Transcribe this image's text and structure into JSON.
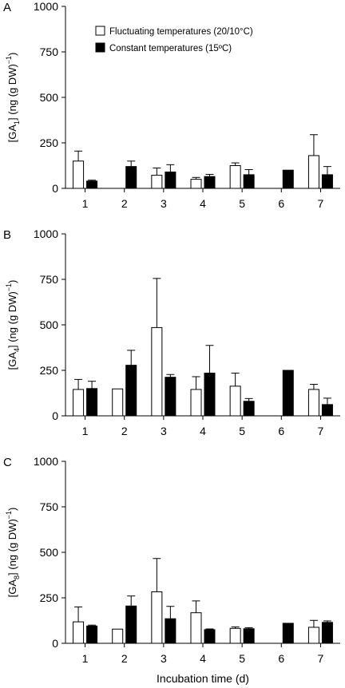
{
  "legend": {
    "items": [
      {
        "label": "Fluctuating temperatures (20/10°C)",
        "color": "#ffffff"
      },
      {
        "label": "Constant temperatures (15ºC)",
        "color": "#000000"
      }
    ],
    "placement": "top-left"
  },
  "shared": {
    "xlabel": "Incubation time (d)",
    "categories": [
      "1",
      "2",
      "3",
      "4",
      "5",
      "6",
      "7"
    ],
    "ylim": [
      0,
      1000
    ],
    "yticks": [
      "0",
      "250",
      "500",
      "750",
      "1000"
    ]
  },
  "chart_data": [
    {
      "type": "bar",
      "panel": "A",
      "ylabel_base": "[GA",
      "ylabel_sub": "1",
      "ylabel_rest": "] (ng (g DW)",
      "ylabel_sup": "−1",
      "ylabel_close": ")",
      "categories": [
        "1",
        "2",
        "3",
        "4",
        "5",
        "6",
        "7"
      ],
      "ylim": [
        0,
        1000
      ],
      "series": [
        {
          "name": "Fluctuating temperatures (20/10°C)",
          "values": [
            150,
            null,
            72,
            50,
            125,
            null,
            180
          ],
          "errors": [
            55,
            null,
            40,
            10,
            15,
            null,
            115
          ]
        },
        {
          "name": "Constant temperatures (15ºC)",
          "values": [
            40,
            120,
            90,
            65,
            75,
            100,
            75
          ],
          "errors": [
            5,
            30,
            40,
            12,
            28,
            null,
            45
          ]
        }
      ]
    },
    {
      "type": "bar",
      "panel": "B",
      "ylabel_base": "[GA",
      "ylabel_sub": "4",
      "ylabel_rest": "] (ng (g DW)",
      "ylabel_sup": "−1",
      "ylabel_close": ")",
      "categories": [
        "1",
        "2",
        "3",
        "4",
        "5",
        "6",
        "7"
      ],
      "ylim": [
        0,
        1000
      ],
      "series": [
        {
          "name": "Fluctuating temperatures (20/10°C)",
          "values": [
            145,
            148,
            485,
            145,
            163,
            null,
            145
          ],
          "errors": [
            55,
            null,
            270,
            70,
            72,
            null,
            28
          ]
        },
        {
          "name": "Constant temperatures (15ºC)",
          "values": [
            150,
            278,
            212,
            235,
            80,
            250,
            62
          ],
          "errors": [
            40,
            82,
            15,
            152,
            15,
            null,
            35
          ]
        }
      ]
    },
    {
      "type": "bar",
      "panel": "C",
      "ylabel_base": "[GA",
      "ylabel_sub": "8",
      "ylabel_rest": "] (ng (g DW)",
      "ylabel_sup": "−1",
      "ylabel_close": ")",
      "categories": [
        "1",
        "2",
        "3",
        "4",
        "5",
        "6",
        "7"
      ],
      "ylim": [
        0,
        1000
      ],
      "series": [
        {
          "name": "Fluctuating temperatures (20/10°C)",
          "values": [
            118,
            78,
            283,
            168,
            82,
            null,
            88
          ],
          "errors": [
            82,
            null,
            183,
            65,
            8,
            null,
            38
          ]
        },
        {
          "name": "Constant temperatures (15ºC)",
          "values": [
            95,
            205,
            135,
            75,
            80,
            110,
            115
          ],
          "errors": [
            5,
            55,
            68,
            4,
            6,
            null,
            8
          ]
        }
      ]
    }
  ]
}
